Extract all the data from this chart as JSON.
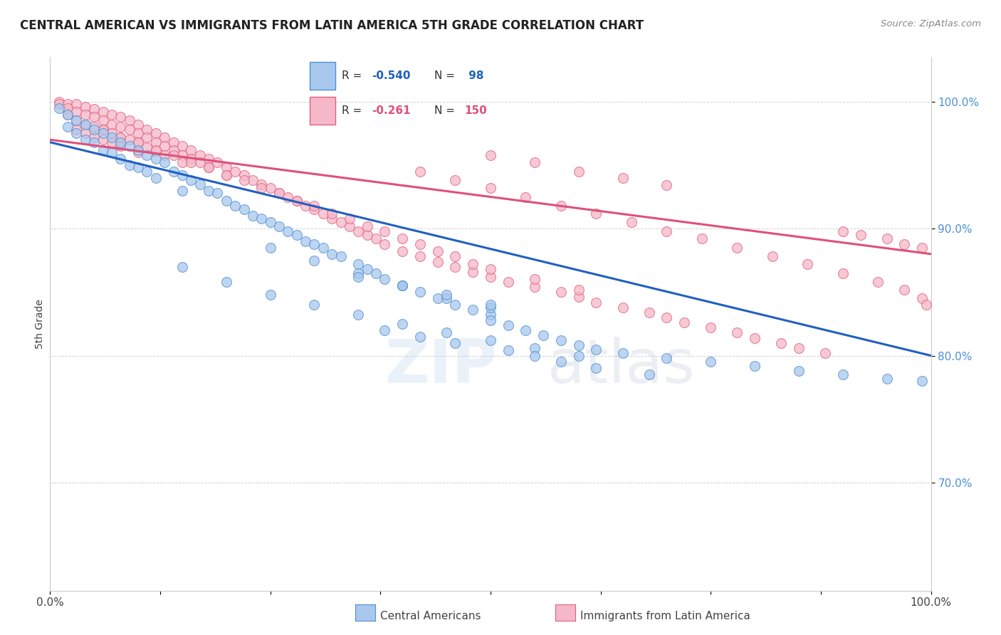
{
  "title": "CENTRAL AMERICAN VS IMMIGRANTS FROM LATIN AMERICA 5TH GRADE CORRELATION CHART",
  "source": "Source: ZipAtlas.com",
  "ylabel": "5th Grade",
  "xlim": [
    0.0,
    1.0
  ],
  "ylim": [
    0.615,
    1.035
  ],
  "yticks": [
    0.7,
    0.8,
    0.9,
    1.0
  ],
  "ytick_labels": [
    "70.0%",
    "80.0%",
    "90.0%",
    "100.0%"
  ],
  "xticks": [
    0.0,
    0.125,
    0.25,
    0.375,
    0.5,
    0.625,
    0.75,
    0.875,
    1.0
  ],
  "xtick_labels": [
    "0.0%",
    "",
    "",
    "",
    "",
    "",
    "",
    "",
    "100.0%"
  ],
  "blue_R": -0.54,
  "blue_N": 98,
  "pink_R": -0.261,
  "pink_N": 150,
  "blue_color": "#A8C8EE",
  "pink_color": "#F5B8C8",
  "blue_edge_color": "#5090D0",
  "pink_edge_color": "#E06080",
  "blue_line_color": "#2060C0",
  "pink_line_color": "#E0507A",
  "watermark": "ZIPatlas",
  "legend_label_blue": "Central Americans",
  "legend_label_pink": "Immigrants from Latin America",
  "blue_line_x0": 0.0,
  "blue_line_y0": 0.968,
  "blue_line_x1": 1.0,
  "blue_line_y1": 0.8,
  "pink_line_x0": 0.0,
  "pink_line_y0": 0.97,
  "pink_line_x1": 1.0,
  "pink_line_y1": 0.88,
  "blue_x": [
    0.01,
    0.02,
    0.02,
    0.03,
    0.03,
    0.04,
    0.04,
    0.05,
    0.05,
    0.06,
    0.06,
    0.07,
    0.07,
    0.08,
    0.08,
    0.09,
    0.09,
    0.1,
    0.1,
    0.11,
    0.11,
    0.12,
    0.12,
    0.13,
    0.14,
    0.15,
    0.15,
    0.16,
    0.17,
    0.18,
    0.19,
    0.2,
    0.21,
    0.22,
    0.23,
    0.24,
    0.25,
    0.26,
    0.27,
    0.28,
    0.29,
    0.3,
    0.31,
    0.32,
    0.33,
    0.35,
    0.36,
    0.37,
    0.38,
    0.4,
    0.42,
    0.44,
    0.46,
    0.48,
    0.5,
    0.5,
    0.52,
    0.54,
    0.56,
    0.58,
    0.6,
    0.62,
    0.65,
    0.7,
    0.75,
    0.8,
    0.85,
    0.9,
    0.95,
    0.99,
    0.15,
    0.2,
    0.25,
    0.3,
    0.35,
    0.4,
    0.45,
    0.5,
    0.55,
    0.6,
    0.25,
    0.3,
    0.35,
    0.4,
    0.45,
    0.5,
    0.35,
    0.4,
    0.45,
    0.5,
    0.38,
    0.42,
    0.46,
    0.52,
    0.55,
    0.58,
    0.62,
    0.68
  ],
  "blue_y": [
    0.995,
    0.99,
    0.98,
    0.985,
    0.975,
    0.982,
    0.97,
    0.978,
    0.968,
    0.975,
    0.962,
    0.972,
    0.96,
    0.968,
    0.955,
    0.965,
    0.95,
    0.962,
    0.948,
    0.958,
    0.945,
    0.955,
    0.94,
    0.952,
    0.945,
    0.942,
    0.93,
    0.938,
    0.935,
    0.93,
    0.928,
    0.922,
    0.918,
    0.915,
    0.91,
    0.908,
    0.905,
    0.902,
    0.898,
    0.895,
    0.89,
    0.888,
    0.885,
    0.88,
    0.878,
    0.872,
    0.868,
    0.865,
    0.86,
    0.855,
    0.85,
    0.845,
    0.84,
    0.836,
    0.832,
    0.828,
    0.824,
    0.82,
    0.816,
    0.812,
    0.808,
    0.805,
    0.802,
    0.798,
    0.795,
    0.792,
    0.788,
    0.785,
    0.782,
    0.78,
    0.87,
    0.858,
    0.848,
    0.84,
    0.832,
    0.825,
    0.818,
    0.812,
    0.806,
    0.8,
    0.885,
    0.875,
    0.865,
    0.855,
    0.845,
    0.838,
    0.862,
    0.855,
    0.848,
    0.84,
    0.82,
    0.815,
    0.81,
    0.804,
    0.8,
    0.795,
    0.79,
    0.785
  ],
  "pink_x": [
    0.01,
    0.01,
    0.02,
    0.02,
    0.02,
    0.03,
    0.03,
    0.03,
    0.03,
    0.04,
    0.04,
    0.04,
    0.04,
    0.05,
    0.05,
    0.05,
    0.05,
    0.06,
    0.06,
    0.06,
    0.06,
    0.07,
    0.07,
    0.07,
    0.07,
    0.08,
    0.08,
    0.08,
    0.08,
    0.09,
    0.09,
    0.09,
    0.1,
    0.1,
    0.1,
    0.1,
    0.11,
    0.11,
    0.11,
    0.12,
    0.12,
    0.12,
    0.13,
    0.13,
    0.13,
    0.14,
    0.14,
    0.15,
    0.15,
    0.15,
    0.16,
    0.16,
    0.17,
    0.17,
    0.18,
    0.18,
    0.19,
    0.2,
    0.2,
    0.21,
    0.22,
    0.23,
    0.24,
    0.25,
    0.26,
    0.27,
    0.28,
    0.29,
    0.3,
    0.31,
    0.32,
    0.33,
    0.34,
    0.35,
    0.36,
    0.37,
    0.38,
    0.4,
    0.42,
    0.44,
    0.46,
    0.48,
    0.5,
    0.52,
    0.55,
    0.58,
    0.6,
    0.62,
    0.65,
    0.68,
    0.7,
    0.72,
    0.75,
    0.78,
    0.8,
    0.83,
    0.85,
    0.88,
    0.9,
    0.92,
    0.95,
    0.97,
    0.99,
    0.06,
    0.08,
    0.1,
    0.12,
    0.14,
    0.16,
    0.18,
    0.2,
    0.22,
    0.24,
    0.26,
    0.28,
    0.3,
    0.32,
    0.34,
    0.36,
    0.38,
    0.4,
    0.42,
    0.44,
    0.46,
    0.48,
    0.5,
    0.55,
    0.6,
    0.5,
    0.55,
    0.6,
    0.65,
    0.7,
    0.42,
    0.46,
    0.5,
    0.54,
    0.58,
    0.62,
    0.66,
    0.7,
    0.74,
    0.78,
    0.82,
    0.86,
    0.9,
    0.94,
    0.97,
    0.99,
    0.995
  ],
  "pink_y": [
    1.0,
    0.998,
    0.998,
    0.995,
    0.99,
    0.998,
    0.992,
    0.985,
    0.978,
    0.996,
    0.99,
    0.982,
    0.975,
    0.994,
    0.988,
    0.98,
    0.972,
    0.992,
    0.985,
    0.978,
    0.97,
    0.99,
    0.982,
    0.975,
    0.968,
    0.988,
    0.98,
    0.972,
    0.965,
    0.985,
    0.978,
    0.97,
    0.982,
    0.975,
    0.968,
    0.96,
    0.978,
    0.972,
    0.964,
    0.975,
    0.968,
    0.961,
    0.972,
    0.965,
    0.958,
    0.968,
    0.962,
    0.965,
    0.958,
    0.952,
    0.962,
    0.955,
    0.958,
    0.952,
    0.955,
    0.948,
    0.952,
    0.948,
    0.942,
    0.945,
    0.942,
    0.938,
    0.935,
    0.932,
    0.928,
    0.925,
    0.922,
    0.918,
    0.915,
    0.912,
    0.908,
    0.905,
    0.902,
    0.898,
    0.895,
    0.892,
    0.888,
    0.882,
    0.878,
    0.874,
    0.87,
    0.866,
    0.862,
    0.858,
    0.854,
    0.85,
    0.846,
    0.842,
    0.838,
    0.834,
    0.83,
    0.826,
    0.822,
    0.818,
    0.814,
    0.81,
    0.806,
    0.802,
    0.898,
    0.895,
    0.892,
    0.888,
    0.885,
    0.978,
    0.972,
    0.968,
    0.962,
    0.958,
    0.952,
    0.948,
    0.942,
    0.938,
    0.932,
    0.928,
    0.922,
    0.918,
    0.912,
    0.908,
    0.902,
    0.898,
    0.892,
    0.888,
    0.882,
    0.878,
    0.872,
    0.868,
    0.86,
    0.852,
    0.958,
    0.952,
    0.945,
    0.94,
    0.934,
    0.945,
    0.938,
    0.932,
    0.925,
    0.918,
    0.912,
    0.905,
    0.898,
    0.892,
    0.885,
    0.878,
    0.872,
    0.865,
    0.858,
    0.852,
    0.845,
    0.84
  ]
}
